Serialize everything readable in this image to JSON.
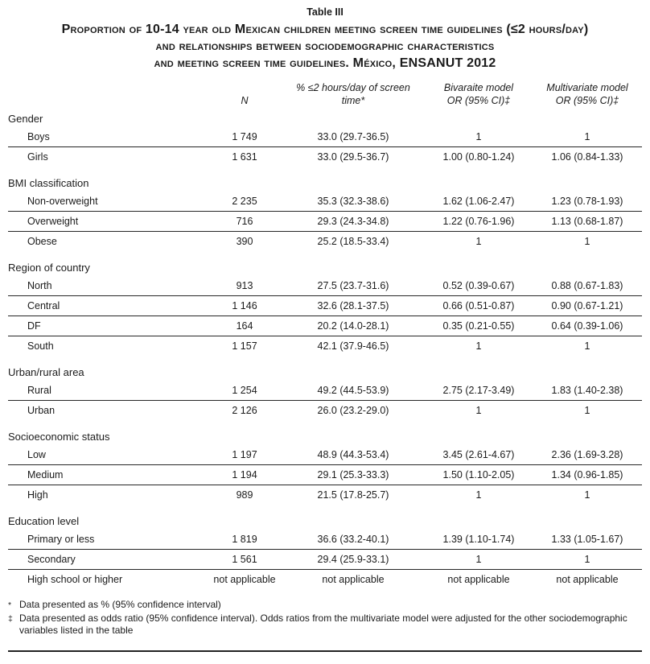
{
  "title": {
    "table_label": "Table III",
    "lines": [
      "Proportion of 10-14 year old Mexican children meeting screen time guidelines (≤2 hours/day)",
      "and relationships between sociodemographic characteristics",
      "and meeting screen time guidelines. México, ENSANUT 2012"
    ]
  },
  "header": {
    "n": "N",
    "pct_line1": "% ≤2 hours/day of screen",
    "pct_line2": "time*",
    "biv_line1": "Bivaraite model",
    "biv_line2": "OR (95% CI)‡",
    "multi_line1": "Multivariate model",
    "multi_line2": "OR (95% CI)‡"
  },
  "groups": [
    {
      "label": "Gender",
      "rows": [
        {
          "label": "Boys",
          "n": "1 749",
          "pct": "33.0 (29.7-36.5)",
          "bivariate": "1",
          "multivariate": "1"
        },
        {
          "label": "Girls",
          "n": "1 631",
          "pct": "33.0 (29.5-36.7)",
          "bivariate": "1.00 (0.80-1.24)",
          "multivariate": "1.06 (0.84-1.33)"
        }
      ]
    },
    {
      "label": "BMI classification",
      "rows": [
        {
          "label": "Non-overweight",
          "n": "2 235",
          "pct": "35.3 (32.3-38.6)",
          "bivariate": "1.62 (1.06-2.47)",
          "multivariate": "1.23 (0.78-1.93)"
        },
        {
          "label": "Overweight",
          "n": "716",
          "pct": "29.3 (24.3-34.8)",
          "bivariate": "1.22 (0.76-1.96)",
          "multivariate": "1.13 (0.68-1.87)"
        },
        {
          "label": "Obese",
          "n": "390",
          "pct": "25.2 (18.5-33.4)",
          "bivariate": "1",
          "multivariate": "1"
        }
      ]
    },
    {
      "label": "Region of country",
      "rows": [
        {
          "label": "North",
          "n": "913",
          "pct": "27.5 (23.7-31.6)",
          "bivariate": "0.52 (0.39-0.67)",
          "multivariate": "0.88 (0.67-1.83)"
        },
        {
          "label": "Central",
          "n": "1 146",
          "pct": "32.6 (28.1-37.5)",
          "bivariate": "0.66 (0.51-0.87)",
          "multivariate": "0.90 (0.67-1.21)"
        },
        {
          "label": "DF",
          "n": "164",
          "pct": "20.2 (14.0-28.1)",
          "bivariate": "0.35 (0.21-0.55)",
          "multivariate": "0.64 (0.39-1.06)"
        },
        {
          "label": "South",
          "n": "1 157",
          "pct": "42.1 (37.9-46.5)",
          "bivariate": "1",
          "multivariate": "1"
        }
      ]
    },
    {
      "label": "Urban/rural area",
      "rows": [
        {
          "label": "Rural",
          "n": "1 254",
          "pct": "49.2 (44.5-53.9)",
          "bivariate": "2.75 (2.17-3.49)",
          "multivariate": "1.83 (1.40-2.38)"
        },
        {
          "label": "Urban",
          "n": "2 126",
          "pct": "26.0 (23.2-29.0)",
          "bivariate": "1",
          "multivariate": "1"
        }
      ]
    },
    {
      "label": "Socioeconomic status",
      "rows": [
        {
          "label": "Low",
          "n": "1 197",
          "pct": "48.9 (44.3-53.4)",
          "bivariate": "3.45 (2.61-4.67)",
          "multivariate": "2.36 (1.69-3.28)"
        },
        {
          "label": "Medium",
          "n": "1 194",
          "pct": "29.1 (25.3-33.3)",
          "bivariate": "1.50 (1.10-2.05)",
          "multivariate": "1.34 (0.96-1.85)"
        },
        {
          "label": "High",
          "n": "989",
          "pct": "21.5 (17.8-25.7)",
          "bivariate": "1",
          "multivariate": "1"
        }
      ]
    },
    {
      "label": "Education level",
      "rows": [
        {
          "label": "Primary or less",
          "n": "1 819",
          "pct": "36.6 (33.2-40.1)",
          "bivariate": "1.39 (1.10-1.74)",
          "multivariate": "1.33 (1.05-1.67)"
        },
        {
          "label": "Secondary",
          "n": "1 561",
          "pct": "29.4 (25.9-33.1)",
          "bivariate": "1",
          "multivariate": "1"
        },
        {
          "label": "High school or higher",
          "n": "not applicable",
          "pct": "not applicable",
          "bivariate": "not applicable",
          "multivariate": "not applicable"
        }
      ]
    }
  ],
  "footnotes": [
    {
      "marker": "*",
      "text": "Data presented as % (95% confidence interval)"
    },
    {
      "marker": "‡",
      "text": "Data presented as odds ratio (95% confidence interval). Odds ratios from the multivariate model were adjusted for the other sociodemographic variables listed in the table"
    }
  ]
}
